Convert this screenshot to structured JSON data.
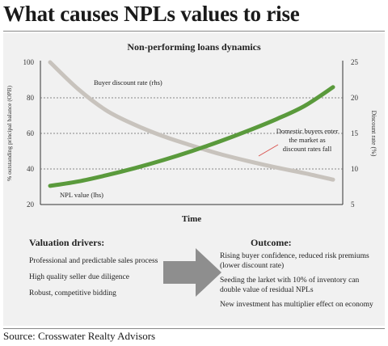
{
  "headline": "What causes NPLs values to rise",
  "chart_data": {
    "type": "line",
    "title": "Non-performing loans dynamics",
    "xlabel": "Time",
    "ylabel_left": "% outstanding principal balance (OPB)",
    "ylabel_right": "Discount rate (%)",
    "ylim_left": [
      20,
      100
    ],
    "ylim_right": [
      5,
      25
    ],
    "yticks_left": [
      "20",
      "40",
      "60",
      "80",
      "100"
    ],
    "yticks_right": [
      "5",
      "10",
      "15",
      "20",
      "25"
    ],
    "grid": "dotted horizontal",
    "x": [
      0,
      1,
      2,
      3,
      4,
      5,
      6,
      7,
      8,
      9,
      10
    ],
    "series": [
      {
        "name": "NPL value (lhs)",
        "axis": "left",
        "color": "#5a9a3c",
        "values": [
          30.5,
          33,
          36.5,
          40.5,
          45,
          50,
          55.5,
          61.5,
          68,
          75.5,
          86
        ]
      },
      {
        "name": "Buyer discount rate (rhs)",
        "axis": "right",
        "color": "#c8c3bd",
        "values": [
          25,
          21.2,
          18.2,
          16.2,
          14.6,
          13.3,
          12.1,
          11.1,
          10.2,
          9.4,
          8.5
        ]
      }
    ],
    "annotation": "Domestic buyers enter the market as discount rates fall",
    "annotation_color": "#d9534f"
  },
  "drivers": {
    "title": "Valuation drivers:",
    "items": [
      "Professional and predictable sales process",
      "High quality seller due diligence",
      "Robust, competitive bidding"
    ]
  },
  "outcome": {
    "title": "Outcome:",
    "items": [
      "Rising buyer confidence, reduced risk premiums (lower discount rate)",
      "Seeding the larket with 10% of inventory can double value of residual NPLs",
      "New investment has multiplier effect on economy"
    ]
  },
  "source": "Source: Crosswater Realty Advisors"
}
